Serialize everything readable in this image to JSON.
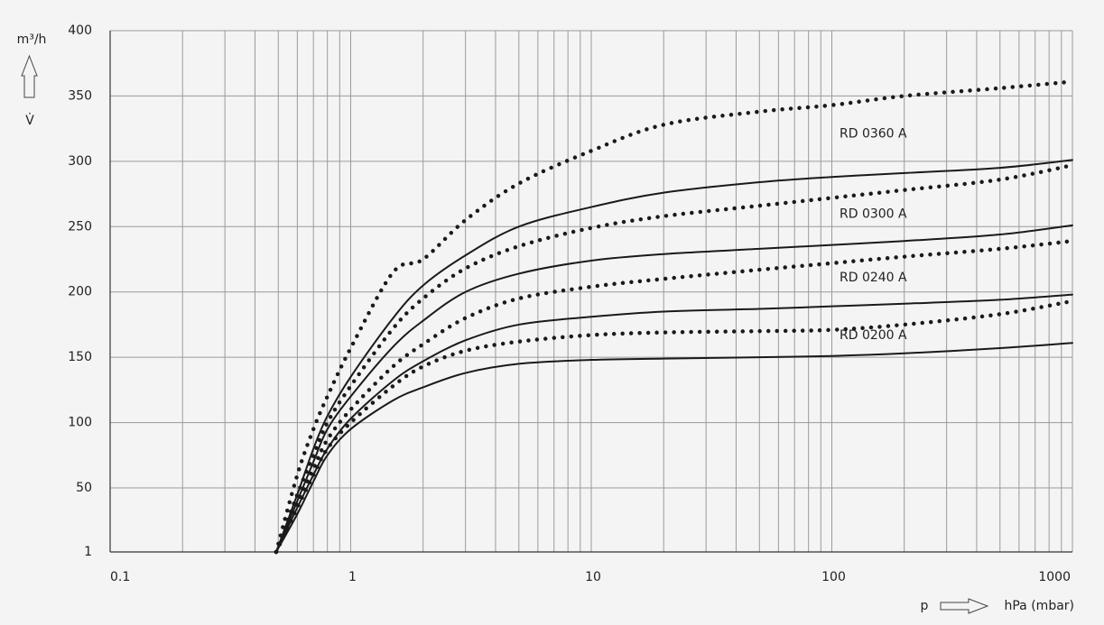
{
  "chart_data": {
    "type": "line",
    "x_log": true,
    "grid": true,
    "minor_grid": true,
    "y_label": "m³/h",
    "y_symbol": "V̇",
    "x_symbol": "p",
    "x_label": "hPa (mbar)",
    "xlim": [
      0.1,
      1000
    ],
    "xticks": [
      0.1,
      1,
      10,
      100,
      1000
    ],
    "ylim": [
      1,
      400
    ],
    "yticks": [
      1,
      50,
      100,
      150,
      200,
      250,
      300,
      350,
      400
    ],
    "x": [
      0.49,
      0.6,
      0.7,
      0.8,
      1,
      1.5,
      2,
      3,
      5,
      10,
      20,
      50,
      100,
      200,
      500,
      1000
    ],
    "series": [
      {
        "name": "RD 0360 A",
        "color": "#1a1a1a",
        "dotted_values": [
          1,
          60,
          95,
          120,
          157,
          215,
          225,
          255,
          283,
          308,
          328,
          338,
          343,
          350,
          356,
          361
        ],
        "solid_values": [
          1,
          45,
          80,
          105,
          135,
          180,
          205,
          228,
          250,
          265,
          276,
          284,
          288,
          291,
          295,
          301
        ]
      },
      {
        "name": "RD 0300 A",
        "color": "#1a1a1a",
        "dotted_values": [
          1,
          45,
          75,
          100,
          128,
          172,
          195,
          218,
          235,
          249,
          258,
          266,
          272,
          278,
          286,
          297
        ],
        "solid_values": [
          1,
          40,
          70,
          95,
          120,
          158,
          178,
          200,
          214,
          224,
          229,
          233,
          236,
          239,
          244,
          251
        ]
      },
      {
        "name": "RD 0240 A",
        "color": "#1a1a1a",
        "dotted_values": [
          1,
          38,
          65,
          87,
          110,
          143,
          160,
          180,
          195,
          204,
          210,
          217,
          222,
          227,
          233,
          239
        ],
        "solid_values": [
          1,
          35,
          60,
          80,
          103,
          132,
          147,
          163,
          175,
          181,
          185,
          187,
          189,
          191,
          194,
          198
        ]
      },
      {
        "name": "RD 0200 A",
        "color": "#1a1a1a",
        "dotted_values": [
          1,
          35,
          60,
          80,
          100,
          128,
          143,
          155,
          162,
          167,
          169,
          170,
          171,
          175,
          183,
          193
        ],
        "solid_values": [
          1,
          30,
          55,
          75,
          95,
          117,
          127,
          138,
          145,
          148,
          149,
          150,
          151,
          153,
          157,
          161
        ]
      }
    ]
  }
}
